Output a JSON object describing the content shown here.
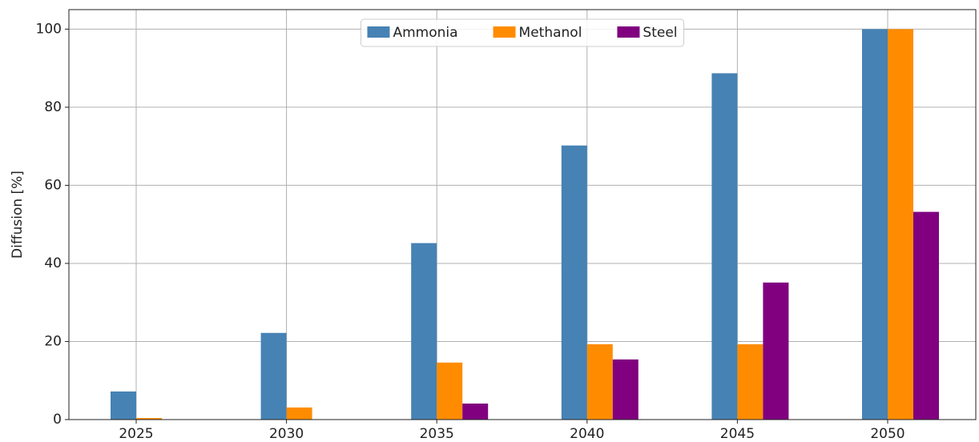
{
  "chart_data": {
    "type": "bar",
    "ylabel": "Diffusion [%]",
    "categories": [
      "2025",
      "2030",
      "2035",
      "2040",
      "2045",
      "2050"
    ],
    "series": [
      {
        "name": "Ammonia",
        "color": "#4682b4",
        "values": [
          7.2,
          22.2,
          45.2,
          70.2,
          88.7,
          100
        ]
      },
      {
        "name": "Methanol",
        "color": "#ff8c00",
        "values": [
          0.4,
          3.1,
          14.6,
          19.3,
          19.3,
          100
        ]
      },
      {
        "name": "Steel",
        "color": "#800080",
        "values": [
          0,
          0,
          4.1,
          15.4,
          35.1,
          53.2
        ]
      }
    ],
    "ylim": [
      0,
      105
    ],
    "yticks": [
      0,
      20,
      40,
      60,
      80,
      100
    ],
    "grid": true,
    "legend": "upper center"
  }
}
